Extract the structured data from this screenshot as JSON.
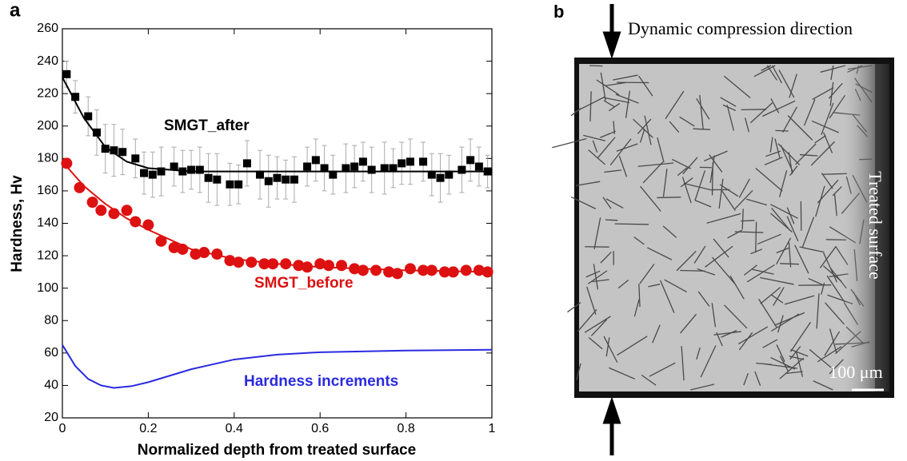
{
  "panel_a": "a",
  "panel_b": "b",
  "chart_data": {
    "type": "scatter-fit",
    "xlabel": "Normalized depth from treated surface",
    "ylabel": "Hardness, Hv",
    "xlim": [
      0,
      1
    ],
    "ylim": [
      20,
      260
    ],
    "xticks": [
      0,
      0.2,
      0.4,
      0.6,
      0.8,
      1
    ],
    "yticks": [
      20,
      40,
      60,
      80,
      100,
      120,
      140,
      160,
      180,
      200,
      220,
      240,
      260
    ],
    "series": [
      {
        "name": "SMGT_after",
        "color": "#000000",
        "marker": "square",
        "x": [
          0.01,
          0.03,
          0.06,
          0.08,
          0.1,
          0.12,
          0.14,
          0.17,
          0.19,
          0.21,
          0.23,
          0.26,
          0.28,
          0.3,
          0.32,
          0.34,
          0.36,
          0.39,
          0.41,
          0.43,
          0.46,
          0.48,
          0.5,
          0.52,
          0.54,
          0.57,
          0.59,
          0.61,
          0.63,
          0.66,
          0.68,
          0.7,
          0.72,
          0.75,
          0.77,
          0.79,
          0.81,
          0.84,
          0.86,
          0.88,
          0.9,
          0.93,
          0.95,
          0.97,
          0.99
        ],
        "values": [
          232,
          218,
          206,
          196,
          186,
          185,
          184,
          180,
          171,
          170,
          172,
          175,
          172,
          173,
          173,
          168,
          167,
          164,
          164,
          177,
          170,
          166,
          168,
          167,
          167,
          175,
          179,
          174,
          170,
          174,
          175,
          178,
          173,
          174,
          174,
          177,
          178,
          178,
          170,
          168,
          170,
          173,
          179,
          175,
          172
        ],
        "errors": [
          8,
          10,
          12,
          14,
          15,
          16,
          14,
          12,
          13,
          14,
          15,
          12,
          13,
          12,
          14,
          15,
          16,
          13,
          12,
          14,
          15,
          16,
          13,
          12,
          14,
          12,
          13,
          14,
          12,
          15,
          13,
          12,
          14,
          16,
          12,
          13,
          14,
          12,
          13,
          15,
          12,
          14,
          13,
          12,
          10
        ],
        "fit": {
          "x": [
            0,
            0.05,
            0.1,
            0.15,
            0.2,
            0.25,
            0.3,
            0.4,
            0.6,
            0.8,
            1
          ],
          "values": [
            230,
            205,
            187,
            178,
            174,
            173,
            172,
            172,
            172,
            172,
            172
          ]
        }
      },
      {
        "name": "SMGT_before",
        "color": "#dd1111",
        "marker": "circle",
        "x": [
          0.01,
          0.04,
          0.07,
          0.09,
          0.12,
          0.15,
          0.17,
          0.2,
          0.23,
          0.26,
          0.28,
          0.31,
          0.33,
          0.36,
          0.39,
          0.41,
          0.44,
          0.47,
          0.49,
          0.52,
          0.55,
          0.57,
          0.6,
          0.62,
          0.65,
          0.68,
          0.7,
          0.73,
          0.76,
          0.78,
          0.81,
          0.84,
          0.86,
          0.89,
          0.91,
          0.94,
          0.97,
          0.99
        ],
        "values": [
          177,
          162,
          153,
          148,
          146,
          148,
          141,
          139,
          129,
          125,
          124,
          121,
          122,
          121,
          117,
          116,
          116,
          115,
          115,
          115,
          114,
          113,
          115,
          114,
          114,
          112,
          111,
          111,
          110,
          109,
          112,
          111,
          111,
          110,
          110,
          111,
          111,
          110
        ],
        "fit": {
          "x": [
            0,
            0.05,
            0.1,
            0.15,
            0.2,
            0.3,
            0.4,
            0.5,
            0.6,
            0.8,
            1
          ],
          "values": [
            178,
            163,
            152,
            143,
            136,
            124,
            118,
            115,
            113,
            111,
            110
          ]
        }
      },
      {
        "name": "Hardness increments",
        "color": "#2a2ae0",
        "marker": "none",
        "fit": {
          "x": [
            0,
            0.03,
            0.06,
            0.09,
            0.12,
            0.16,
            0.2,
            0.3,
            0.4,
            0.5,
            0.6,
            0.8,
            1
          ],
          "values": [
            65,
            52,
            44,
            40,
            38.5,
            39.5,
            42,
            50,
            56,
            59,
            60.5,
            61.5,
            62
          ]
        }
      }
    ]
  },
  "micrograph": {
    "direction": "Dynamic compression direction",
    "surface": "Treated surface",
    "scale": "100 μm"
  }
}
